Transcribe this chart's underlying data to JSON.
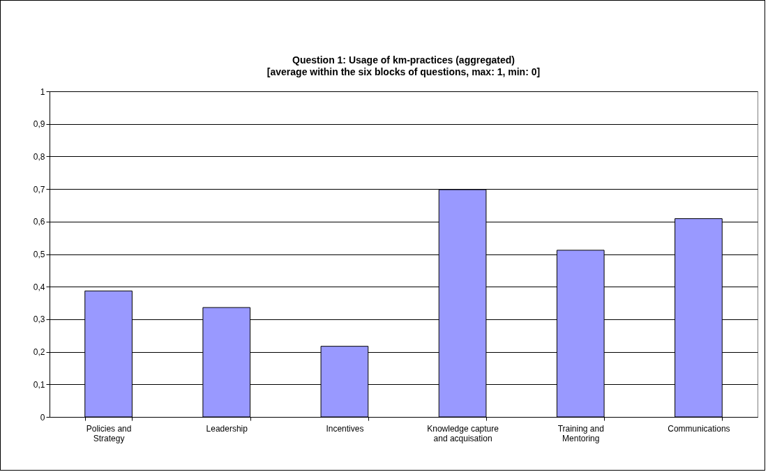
{
  "chart_data": {
    "type": "bar",
    "title": "Question 1: Usage of km-practices (aggregated)",
    "subtitle": "[average within the six blocks of questions, max: 1, min: 0]",
    "categories": [
      "Policies and Strategy",
      "Leadership",
      "Incentives",
      "Knowledge capture and acquisation",
      "Training and Mentoring",
      "Communications"
    ],
    "values": [
      0.387,
      0.336,
      0.217,
      0.698,
      0.512,
      0.609
    ],
    "color": "#9999ff",
    "ylim": [
      0,
      1
    ],
    "yticks": [
      0,
      {
        "value": 0.1,
        "label": "0,1"
      },
      {
        "value": 0.2,
        "label": "0,2"
      },
      {
        "value": 0.3,
        "label": "0,3"
      },
      {
        "value": 0.4,
        "label": "0,4"
      },
      {
        "value": 0.5,
        "label": "0,5"
      },
      {
        "value": 0.6,
        "label": "0,6"
      },
      {
        "value": 0.7,
        "label": "0,7"
      },
      {
        "value": 0.8,
        "label": "0,8"
      },
      {
        "value": 0.9,
        "label": "0,9"
      },
      1
    ],
    "grid": "y"
  }
}
